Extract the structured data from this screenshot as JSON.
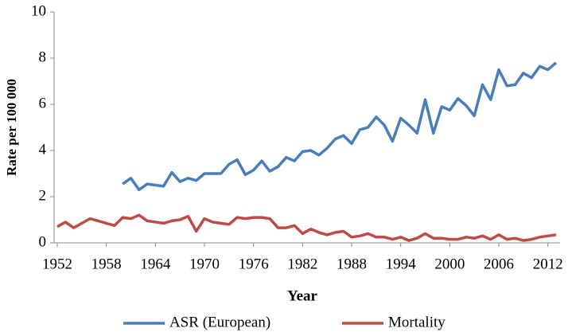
{
  "chart_data": {
    "type": "line",
    "x_label": "Year",
    "y_label": "Rate per 100 000",
    "x": [
      1952,
      1953,
      1954,
      1955,
      1956,
      1957,
      1958,
      1959,
      1960,
      1961,
      1962,
      1963,
      1964,
      1965,
      1966,
      1967,
      1968,
      1969,
      1970,
      1971,
      1972,
      1973,
      1974,
      1975,
      1976,
      1977,
      1978,
      1979,
      1980,
      1981,
      1982,
      1983,
      1984,
      1985,
      1986,
      1987,
      1988,
      1989,
      1990,
      1991,
      1992,
      1993,
      1994,
      1995,
      1996,
      1997,
      1998,
      1999,
      2000,
      2001,
      2002,
      2003,
      2004,
      2005,
      2006,
      2007,
      2008,
      2009,
      2010,
      2011,
      2012,
      2013
    ],
    "series": [
      {
        "name": "ASR (European)",
        "color": "#4a7ebb",
        "values": [
          null,
          null,
          null,
          null,
          null,
          null,
          null,
          null,
          2.55,
          2.8,
          2.3,
          2.55,
          2.5,
          2.45,
          3.05,
          2.65,
          2.8,
          2.7,
          3.0,
          3.0,
          3.0,
          3.4,
          3.6,
          2.95,
          3.15,
          3.55,
          3.1,
          3.3,
          3.7,
          3.55,
          3.95,
          4.0,
          3.8,
          4.1,
          4.5,
          4.65,
          4.3,
          4.9,
          5.0,
          5.45,
          5.1,
          4.4,
          5.4,
          5.1,
          4.75,
          6.2,
          4.75,
          5.9,
          5.75,
          6.25,
          5.95,
          5.5,
          6.85,
          6.2,
          7.5,
          6.8,
          6.85,
          7.35,
          7.15,
          7.65,
          7.5,
          7.8
        ]
      },
      {
        "name": "Mortality",
        "color": "#be4b48",
        "values": [
          0.7,
          0.9,
          0.65,
          0.85,
          1.05,
          0.95,
          0.85,
          0.75,
          1.1,
          1.05,
          1.2,
          0.95,
          0.9,
          0.85,
          0.95,
          1.0,
          1.15,
          0.5,
          1.05,
          0.9,
          0.85,
          0.8,
          1.1,
          1.05,
          1.1,
          1.1,
          1.05,
          0.65,
          0.65,
          0.75,
          0.4,
          0.6,
          0.45,
          0.35,
          0.45,
          0.5,
          0.25,
          0.3,
          0.4,
          0.25,
          0.25,
          0.15,
          0.25,
          0.1,
          0.2,
          0.4,
          0.2,
          0.2,
          0.15,
          0.15,
          0.25,
          0.2,
          0.3,
          0.15,
          0.35,
          0.15,
          0.2,
          0.1,
          0.15,
          0.25,
          0.3,
          0.35
        ]
      }
    ],
    "xlim": [
      1952,
      2013
    ],
    "xticks": [
      1952,
      1958,
      1964,
      1970,
      1976,
      1982,
      1988,
      1994,
      2000,
      2006,
      2012
    ],
    "ylim": [
      0,
      10
    ],
    "yticks": [
      0,
      2,
      4,
      6,
      8,
      10
    ],
    "grid": false,
    "legend": "bottom"
  }
}
